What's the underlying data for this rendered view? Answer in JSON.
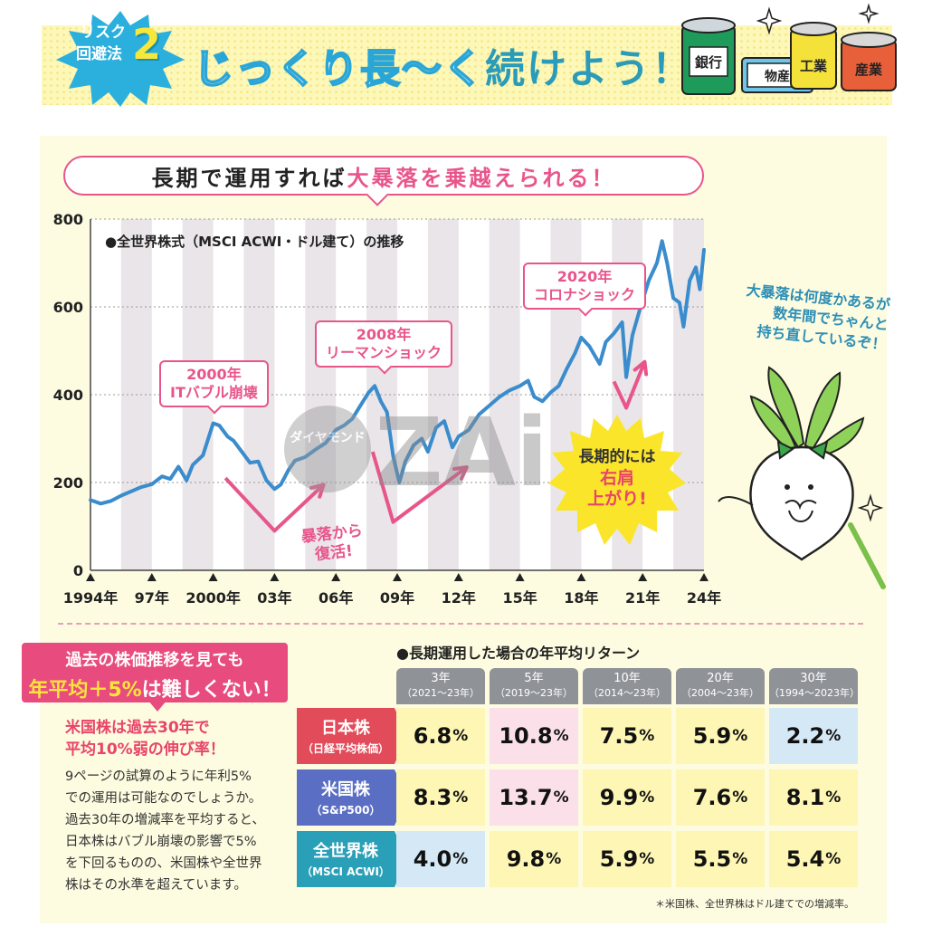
{
  "header": {
    "badge_line1": "リスク",
    "badge_line2": "回避法",
    "badge_number": "2",
    "title_main": "じっくり長〜く",
    "title_tail": "続けよう！",
    "can_labels": [
      "銀行",
      "物産",
      "工業",
      "産業"
    ]
  },
  "chart_title": {
    "part1": "長期で運用すれば",
    "part2": "大暴落を乗越えられる！"
  },
  "chart_data": {
    "type": "line",
    "title": "●全世界株式（MSCI ACWI・ドル建て）の推移",
    "xlabel": "",
    "ylabel": "",
    "x_tick_labels": [
      "1994年",
      "97年",
      "2000年",
      "03年",
      "06年",
      "09年",
      "12年",
      "15年",
      "18年",
      "21年",
      "24年"
    ],
    "x_ticks": [
      1994,
      1997,
      2000,
      2003,
      2006,
      2009,
      2012,
      2015,
      2018,
      2021,
      2024
    ],
    "xlim": [
      1994,
      2024
    ],
    "y_tick_labels": [
      "0",
      "200",
      "400",
      "600",
      "800"
    ],
    "ylim": [
      0,
      800
    ],
    "grid": "horizontal-dotted",
    "series": [
      {
        "name": "",
        "color": "#3a8ccd",
        "points": [
          [
            1994.0,
            160
          ],
          [
            1994.5,
            152
          ],
          [
            1995.0,
            158
          ],
          [
            1995.5,
            170
          ],
          [
            1996.0,
            180
          ],
          [
            1996.5,
            190
          ],
          [
            1997.0,
            196
          ],
          [
            1997.5,
            214
          ],
          [
            1997.9,
            208
          ],
          [
            1998.3,
            236
          ],
          [
            1998.7,
            205
          ],
          [
            1999.0,
            240
          ],
          [
            1999.5,
            262
          ],
          [
            2000.0,
            335
          ],
          [
            2000.3,
            330
          ],
          [
            2000.7,
            305
          ],
          [
            2001.0,
            295
          ],
          [
            2001.4,
            270
          ],
          [
            2001.8,
            245
          ],
          [
            2002.2,
            248
          ],
          [
            2002.6,
            205
          ],
          [
            2003.0,
            185
          ],
          [
            2003.3,
            195
          ],
          [
            2003.7,
            230
          ],
          [
            2004.0,
            250
          ],
          [
            2004.5,
            258
          ],
          [
            2005.0,
            275
          ],
          [
            2005.5,
            290
          ],
          [
            2006.0,
            320
          ],
          [
            2006.4,
            330
          ],
          [
            2006.8,
            345
          ],
          [
            2007.2,
            375
          ],
          [
            2007.6,
            405
          ],
          [
            2007.9,
            420
          ],
          [
            2008.2,
            385
          ],
          [
            2008.5,
            360
          ],
          [
            2008.8,
            260
          ],
          [
            2009.1,
            200
          ],
          [
            2009.4,
            248
          ],
          [
            2009.8,
            285
          ],
          [
            2010.2,
            300
          ],
          [
            2010.5,
            270
          ],
          [
            2010.9,
            325
          ],
          [
            2011.3,
            340
          ],
          [
            2011.7,
            280
          ],
          [
            2012.0,
            305
          ],
          [
            2012.5,
            320
          ],
          [
            2013.0,
            355
          ],
          [
            2013.5,
            375
          ],
          [
            2014.0,
            395
          ],
          [
            2014.5,
            410
          ],
          [
            2015.0,
            420
          ],
          [
            2015.4,
            432
          ],
          [
            2015.7,
            395
          ],
          [
            2016.1,
            385
          ],
          [
            2016.5,
            405
          ],
          [
            2016.9,
            420
          ],
          [
            2017.3,
            460
          ],
          [
            2017.7,
            495
          ],
          [
            2018.0,
            530
          ],
          [
            2018.4,
            510
          ],
          [
            2018.9,
            470
          ],
          [
            2019.2,
            520
          ],
          [
            2019.6,
            540
          ],
          [
            2020.0,
            565
          ],
          [
            2020.2,
            440
          ],
          [
            2020.5,
            535
          ],
          [
            2020.9,
            600
          ],
          [
            2021.3,
            660
          ],
          [
            2021.7,
            700
          ],
          [
            2021.95,
            750
          ],
          [
            2022.2,
            700
          ],
          [
            2022.5,
            620
          ],
          [
            2022.8,
            610
          ],
          [
            2023.0,
            555
          ],
          [
            2023.3,
            660
          ],
          [
            2023.6,
            690
          ],
          [
            2023.8,
            640
          ],
          [
            2024.0,
            730
          ]
        ]
      }
    ],
    "annotations": [
      {
        "year_label": "2000年",
        "event": "ITバブル崩壊"
      },
      {
        "year_label": "2008年",
        "event": "リーマンショック"
      },
      {
        "year_label": "2020年",
        "event": "コロナショック"
      }
    ],
    "bounce_label_line1": "暴落から",
    "bounce_label_line2": "復活!",
    "burst_line1": "長期的には",
    "burst_line2": "右肩",
    "burst_line3": "上がり!"
  },
  "mascot_speech": {
    "line1": "大暴落は何度かあるが",
    "line2": "数年間でちゃんと",
    "line3": "持ち直しているぞ！"
  },
  "left_panel": {
    "banner_line1": "過去の株価推移を見ても",
    "banner_hl": "年平均＋5%",
    "banner_rest": "は難しくない！",
    "sub_line1": "米国株は過去30年で",
    "sub_line2": "平均10%弱の伸び率！",
    "body": [
      "9ページの試算のように年利5%",
      "での運用は可能なのでしょうか。",
      "過去30年の増減率を平均すると、",
      "日本株はバブル崩壊の影響で5%",
      "を下回るものの、米国株や全世界",
      "株はその水準を超えています。"
    ]
  },
  "returns_table": {
    "title": "●長期運用した場合の年平均リターン",
    "columns": [
      {
        "label": "3年",
        "range": "（2021〜23年）"
      },
      {
        "label": "5年",
        "range": "（2019〜23年）"
      },
      {
        "label": "10年",
        "range": "（2014〜23年）"
      },
      {
        "label": "20年",
        "range": "（2004〜23年）"
      },
      {
        "label": "30年",
        "range": "（1994〜2023年）"
      }
    ],
    "rows": [
      {
        "name": "日本株",
        "sub": "（日経平均株価）",
        "color": "#e24b59",
        "values": [
          "6.8",
          "10.8",
          "7.5",
          "5.9",
          "2.2"
        ],
        "bgs": [
          "#fdf6b4",
          "#fbe0ea",
          "#fdf6b4",
          "#fdf6b4",
          "#d4e8f6"
        ]
      },
      {
        "name": "米国株",
        "sub": "（S&P500）",
        "color": "#5a6fc4",
        "values": [
          "8.3",
          "13.7",
          "9.9",
          "7.6",
          "8.1"
        ],
        "bgs": [
          "#fdf6b4",
          "#fbe0ea",
          "#fdf6b4",
          "#fdf6b4",
          "#fdf6b4"
        ]
      },
      {
        "name": "全世界株",
        "sub": "（MSCI ACWI）",
        "color": "#2aa0b8",
        "values": [
          "4.0",
          "9.8",
          "5.9",
          "5.5",
          "5.4"
        ],
        "bgs": [
          "#d4e8f6",
          "#fdf6b4",
          "#fdf6b4",
          "#fdf6b4",
          "#fdf6b4"
        ]
      }
    ],
    "unit": "%",
    "footnote": "＊米国株、全世界株はドル建てでの増減率。"
  },
  "watermark_text": "ZAi",
  "watermark_sub": "ダイヤモンド"
}
